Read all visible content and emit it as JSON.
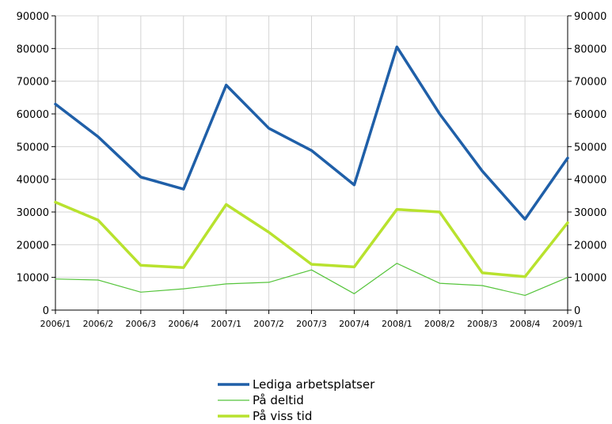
{
  "chart_data": {
    "type": "line",
    "categories": [
      "2006/1",
      "2006/2",
      "2006/3",
      "2006/4",
      "2007/1",
      "2007/2",
      "2007/3",
      "2007/4",
      "2008/1",
      "2008/2",
      "2008/3",
      "2008/4",
      "2009/1"
    ],
    "ylim": [
      0,
      90000
    ],
    "yticks": [
      "0",
      "10000",
      "20000",
      "30000",
      "40000",
      "50000",
      "60000",
      "70000",
      "80000",
      "90000"
    ],
    "grid": true,
    "legend_position": "bottom",
    "series": [
      {
        "name": "Lediga arbetsplatser",
        "color": "#1f5fa8",
        "values": [
          63000,
          53000,
          40700,
          37000,
          68800,
          55600,
          48800,
          38300,
          80500,
          60000,
          42500,
          27800,
          46500
        ]
      },
      {
        "name": "På deltid",
        "color": "#55c43b",
        "values": [
          9500,
          9200,
          5500,
          6500,
          8000,
          8500,
          12300,
          5000,
          14300,
          8200,
          7500,
          4500,
          10000
        ]
      },
      {
        "name": "På viss tid",
        "color": "#b8e22e",
        "values": [
          33000,
          27500,
          13700,
          13000,
          32300,
          23800,
          14000,
          13200,
          30800,
          30000,
          11400,
          10200,
          26700
        ]
      }
    ]
  }
}
